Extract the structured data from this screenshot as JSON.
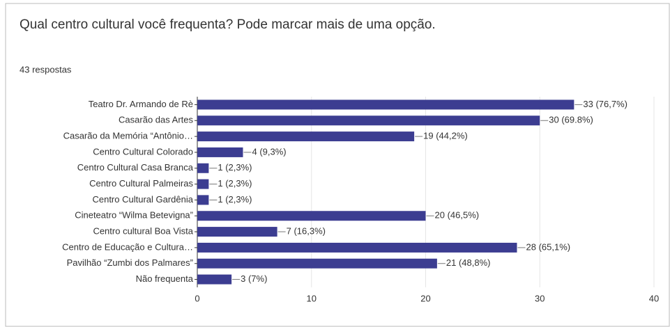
{
  "chart_data": {
    "type": "bar",
    "orientation": "horizontal",
    "title": "Qual centro cultural você frequenta? Pode marcar mais de uma opção.",
    "subtitle": "43 respostas",
    "categories": [
      "Teatro Dr. Armando de Rè",
      "Casarão das Artes",
      "Casarão da Memória “Antônio…",
      "Centro Cultural Colorado",
      "Centro Cultural Casa Branca",
      "Centro Cultural Palmeiras",
      "Centro Cultural Gardênia",
      "Cineteatro “Wilma Betevigna”",
      "Centro cultural Boa Vista",
      "Centro de Educação e Cultura…",
      "Pavilhão “Zumbi dos Palmares”",
      "Não frequenta"
    ],
    "values": [
      33,
      30,
      19,
      4,
      1,
      1,
      1,
      20,
      7,
      28,
      21,
      3
    ],
    "value_labels": [
      "33 (76,7%)",
      "30 (69.8%)",
      "19 (44,2%)",
      "4 (9,3%)",
      "1 (2,3%)",
      "1 (2,3%)",
      "1 (2,3%)",
      "20 (46,5%)",
      "7 (16,3%)",
      "28 (65,1%)",
      "21 (48,8%)",
      "3 (7%)"
    ],
    "color": "#3c3d91",
    "xlim": [
      0,
      40
    ],
    "xticks": [
      0,
      10,
      20,
      30,
      40
    ],
    "grid": true
  }
}
